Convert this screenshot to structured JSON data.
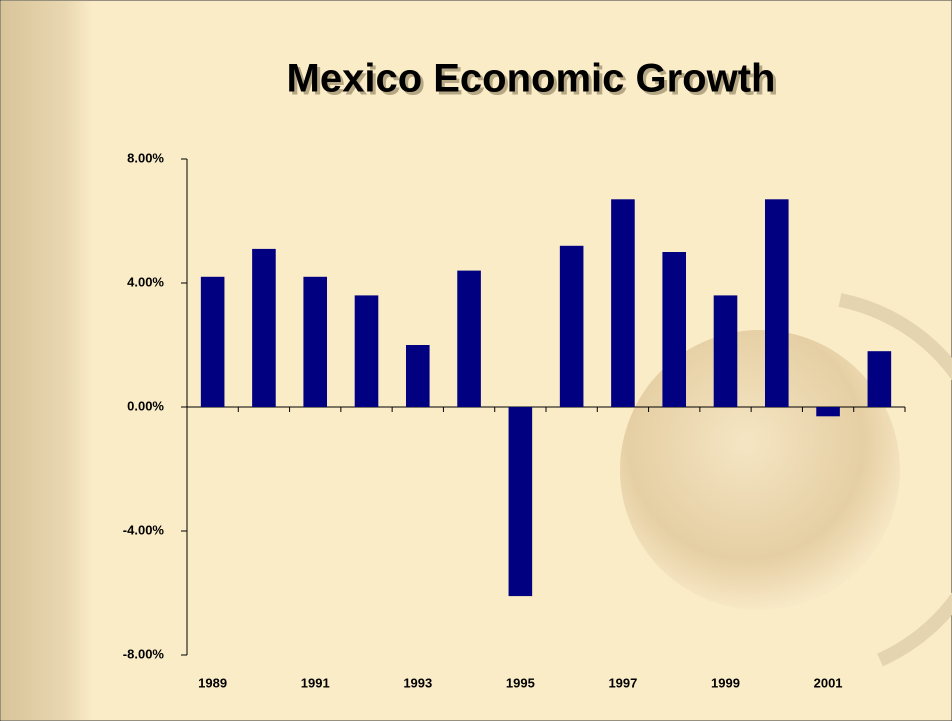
{
  "chart_data": {
    "type": "bar",
    "title": "Mexico Economic Growth",
    "categories": [
      "1989",
      null,
      "1991",
      null,
      "1993",
      null,
      "1995",
      null,
      "1997",
      null,
      "1999",
      null,
      "2001",
      null
    ],
    "values": [
      4.2,
      5.1,
      4.2,
      3.6,
      2.0,
      4.4,
      -6.1,
      5.2,
      6.7,
      5.0,
      3.6,
      6.7,
      -0.3,
      1.8
    ],
    "color": "#000080",
    "ylim": [
      -8,
      8
    ],
    "yticks": [
      {
        "value": -8,
        "label": "-8.00%"
      },
      {
        "value": -4,
        "label": "-4.00%"
      },
      {
        "value": 0,
        "label": "0.00%"
      },
      {
        "value": 4,
        "label": "4.00%"
      },
      {
        "value": 8,
        "label": "8.00%"
      }
    ],
    "grid": false
  }
}
